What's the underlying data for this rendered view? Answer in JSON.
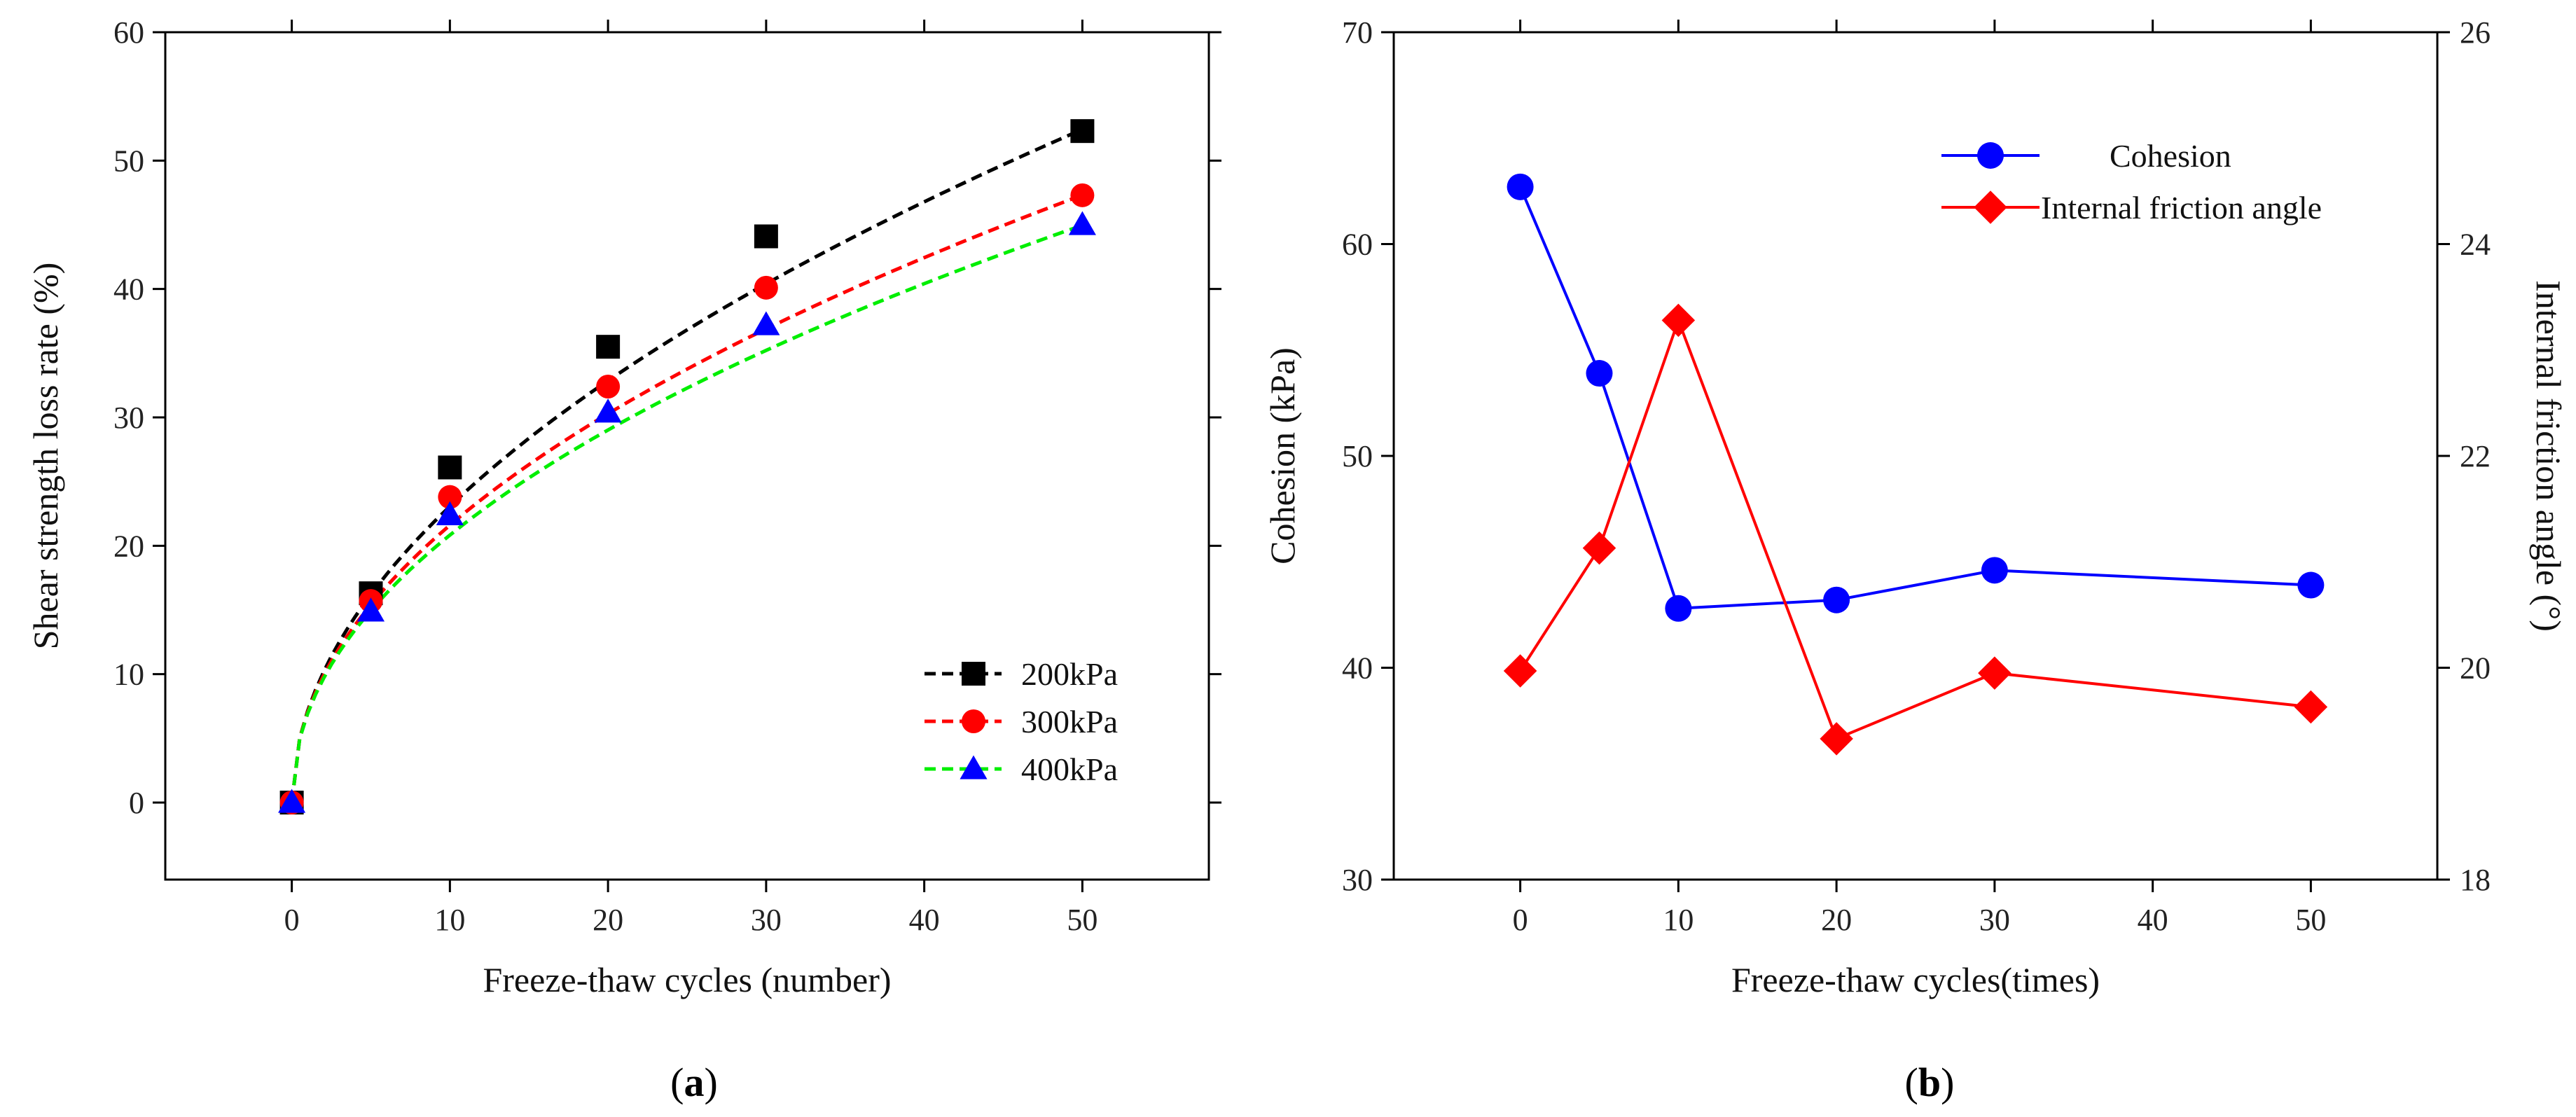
{
  "chart_data": [
    {
      "id": "a",
      "type": "scatter",
      "panel_label": "a",
      "title": "",
      "xlabel": "Freeze-thaw cycles (number)",
      "ylabel": "Shear strength loss rate (%)",
      "xlim": [
        -8,
        58
      ],
      "ylim": [
        -6,
        60
      ],
      "xticks": [
        0,
        10,
        20,
        30,
        40,
        50
      ],
      "yticks": [
        0,
        10,
        20,
        30,
        40,
        50,
        60
      ],
      "legend_position": "bottom-right",
      "series": [
        {
          "name": "200kPa",
          "color": "#000000",
          "marker": "square",
          "x": [
            0,
            5,
            10,
            20,
            30,
            50
          ],
          "y": [
            0,
            16.3,
            26.1,
            35.5,
            44.1,
            52.3
          ],
          "fit": {
            "type": "power",
            "a": 7.13,
            "b": 0.51
          }
        },
        {
          "name": "300kPa",
          "color": "#ff0000",
          "marker": "circle",
          "x": [
            0,
            5,
            10,
            20,
            30,
            50
          ],
          "y": [
            0,
            15.7,
            23.8,
            32.4,
            40.1,
            47.3
          ],
          "fit": {
            "type": "power",
            "a": 7.04,
            "b": 0.487
          }
        },
        {
          "name": "400kPa",
          "color": "#0000ff",
          "fit_color": "#00ee00",
          "marker": "triangle",
          "x": [
            0,
            5,
            10,
            20,
            30,
            50
          ],
          "y": [
            0,
            14.9,
            22.4,
            30.4,
            37.2,
            45.0
          ],
          "fit": {
            "type": "power",
            "a": 6.93,
            "b": 0.478
          }
        }
      ]
    },
    {
      "id": "b",
      "type": "line",
      "panel_label": "b",
      "title": "",
      "xlabel": "Freeze-thaw cycles(times)",
      "ylabel": "Cohesion (kPa)",
      "y2label": "Internal friction angle (°)",
      "xlim": [
        -8,
        58
      ],
      "ylim": [
        30,
        70
      ],
      "y2lim": [
        18,
        26
      ],
      "xticks": [
        0,
        10,
        20,
        30,
        40,
        50
      ],
      "yticks": [
        30,
        40,
        50,
        60,
        70
      ],
      "y2ticks": [
        18,
        20,
        22,
        24,
        26
      ],
      "legend_position": "top-right",
      "series": [
        {
          "name": "Cohesion",
          "axis": "left",
          "color": "#0000ff",
          "marker": "circle",
          "x": [
            0,
            5,
            10,
            20,
            30,
            50
          ],
          "y": [
            62.7,
            53.9,
            42.8,
            43.2,
            44.6,
            43.9
          ]
        },
        {
          "name": "Internal friction angle",
          "axis": "right",
          "color": "#ff0000",
          "marker": "diamond",
          "x": [
            0,
            5,
            10,
            20,
            30,
            50
          ],
          "y": [
            19.97,
            21.13,
            23.28,
            19.33,
            19.95,
            19.63
          ]
        }
      ]
    }
  ]
}
